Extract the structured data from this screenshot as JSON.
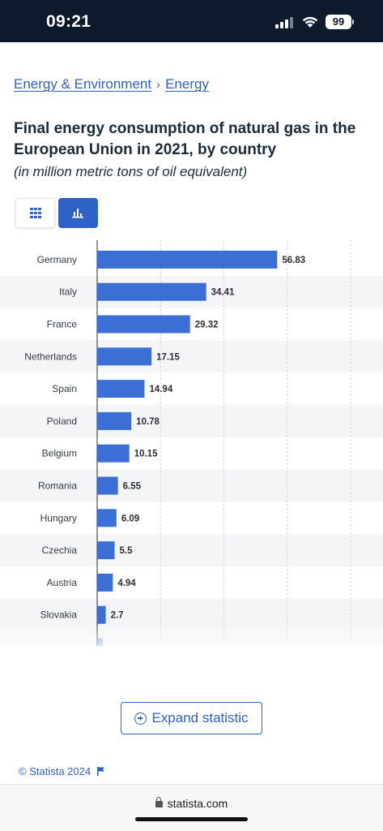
{
  "status_bar": {
    "time": "09:21",
    "battery": "99"
  },
  "breadcrumb": {
    "items": [
      "Energy & Environment",
      "Energy"
    ],
    "separator": "›"
  },
  "title": "Final energy consumption of natural gas in the European Union in 2021, by country",
  "subtitle": "(in million metric tons of oil equivalent)",
  "view_toggle": {
    "table_icon": "grid-icon",
    "chart_icon": "bar-chart-icon",
    "active": "chart"
  },
  "chart_data": {
    "type": "bar",
    "orientation": "horizontal",
    "categories": [
      "Germany",
      "Italy",
      "France",
      "Netherlands",
      "Spain",
      "Poland",
      "Belgium",
      "Romania",
      "Hungary",
      "Czechia",
      "Austria",
      "Slovakia"
    ],
    "values": [
      56.83,
      34.41,
      29.32,
      17.15,
      14.94,
      10.78,
      10.15,
      6.55,
      6.09,
      5.5,
      4.94,
      2.7
    ],
    "value_labels": [
      "56.83",
      "34.41",
      "29.32",
      "17.15",
      "14.94",
      "10.78",
      "10.15",
      "6.55",
      "6.09",
      "5.5",
      "4.94",
      "2.7"
    ],
    "xlim": [
      0,
      80
    ],
    "grid": true,
    "bar_color": "#3b6fd6"
  },
  "expand_button": {
    "label": "Expand statistic"
  },
  "copyright": "© Statista 2024",
  "url": "statista.com",
  "colors": {
    "accent": "#2f62c9",
    "status_bar": "#0d1a2b"
  }
}
